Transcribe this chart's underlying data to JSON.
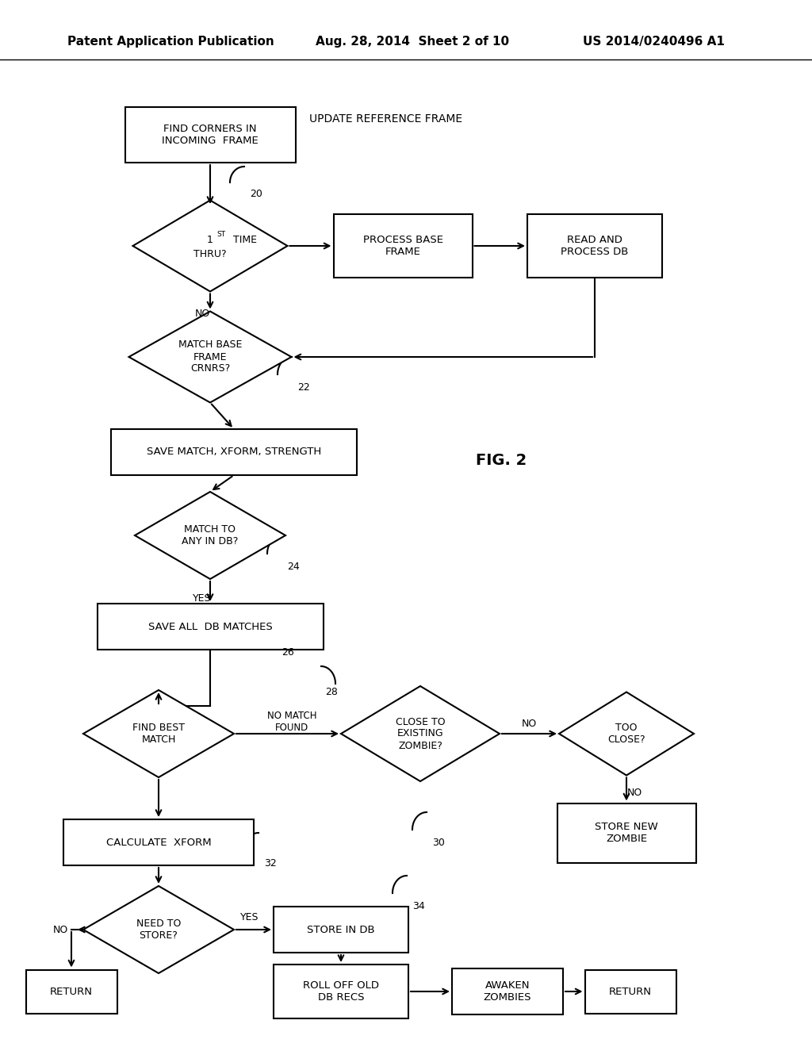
{
  "header_left": "Patent Application Publication",
  "header_mid": "Aug. 28, 2014  Sheet 2 of 10",
  "header_right": "US 2014/0240496 A1",
  "fig_label": "FIG. 2",
  "background": "#ffffff"
}
